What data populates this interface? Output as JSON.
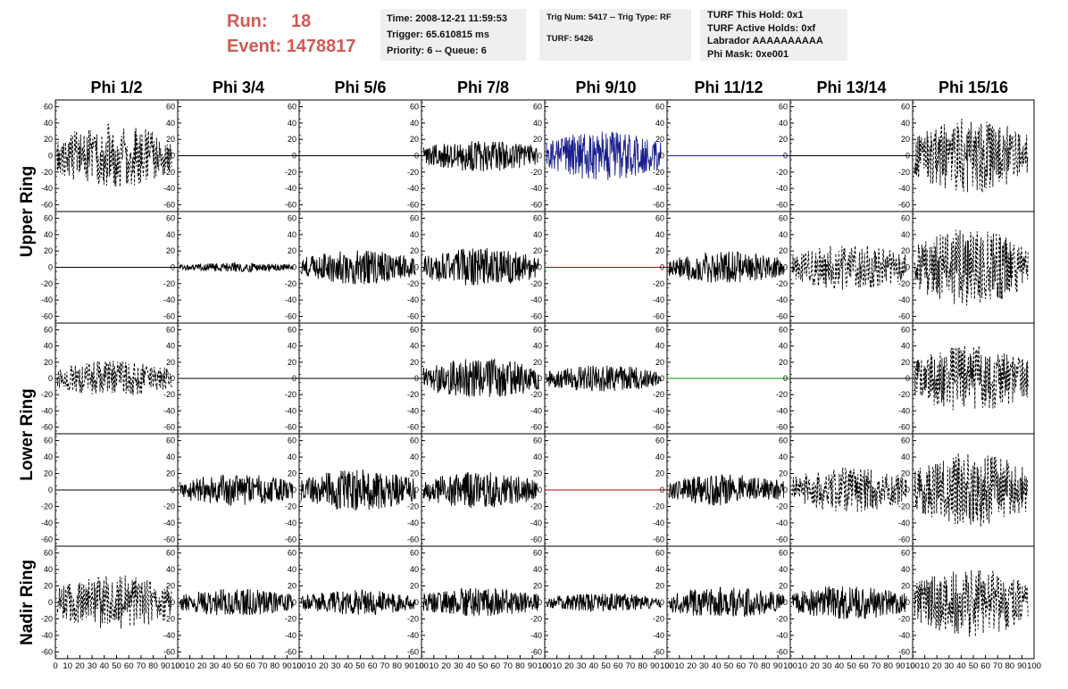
{
  "header": {
    "run_label": "Run:",
    "run_value": "18",
    "event_label": "Event:",
    "event_value": "1478817"
  },
  "info_box_1": {
    "line1": "Time: 2008-12-21 11:59:53",
    "line2": "Trigger: 65.610815 ms",
    "line3": "Priority: 6 -- Queue: 6"
  },
  "info_box_2": {
    "line1": "Trig Num: 5417 -- Trig Type: RF",
    "line2": "TURF: 5426"
  },
  "info_box_3": {
    "line1": "TURF This Hold: 0x1",
    "line2": "TURF Active Holds: 0xf",
    "line3": "Labrador AAAAAAAAAA",
    "line4": "Phi Mask: 0xe001"
  },
  "colors": {
    "header_red": "#d05a55",
    "info_bg": "#efefef",
    "trace_black": "#000000",
    "trace_blue": "#1a1f8c",
    "trace_red": "#b00000",
    "trace_green": "#009a00"
  },
  "chart_data": {
    "type": "line",
    "title": "",
    "columns": [
      "Phi 1/2",
      "Phi 3/4",
      "Phi 5/6",
      "Phi 7/8",
      "Phi 9/10",
      "Phi 11/12",
      "Phi 13/14",
      "Phi 15/16"
    ],
    "row_groups": [
      "Upper Ring",
      "Lower Ring",
      "Nadir Ring"
    ],
    "ylim": [
      -65,
      65
    ],
    "yticks": [
      "60",
      "40",
      "20",
      "0",
      "-20",
      "-40",
      "-60"
    ],
    "xlim": [
      0,
      100
    ],
    "xticks": [
      "0",
      "10",
      "20",
      "30",
      "40",
      "50",
      "60",
      "70",
      "80",
      "90",
      "100"
    ],
    "grid": false,
    "panels": [
      [
        {
          "style": "dashed",
          "amp": 28,
          "color": "black"
        },
        {
          "style": "flat",
          "amp": 0,
          "color": "black"
        },
        {
          "style": "flat",
          "amp": 0,
          "color": "black"
        },
        {
          "style": "solid",
          "amp": 14,
          "color": "black"
        },
        {
          "style": "solid",
          "amp": 22,
          "color": "blue"
        },
        {
          "style": "flat",
          "amp": 0,
          "color": "blue"
        },
        {
          "style": "flat",
          "amp": 0,
          "color": "black"
        },
        {
          "style": "dashed",
          "amp": 33,
          "color": "black"
        }
      ],
      [
        {
          "style": "flat",
          "amp": 0,
          "color": "black"
        },
        {
          "style": "solid",
          "amp": 4,
          "color": "black"
        },
        {
          "style": "solid",
          "amp": 15,
          "color": "black"
        },
        {
          "style": "solid",
          "amp": 17,
          "color": "black"
        },
        {
          "style": "flat",
          "amp": 0,
          "color": "red"
        },
        {
          "style": "solid",
          "amp": 14,
          "color": "black"
        },
        {
          "style": "dashed",
          "amp": 20,
          "color": "black"
        },
        {
          "style": "dashed",
          "amp": 34,
          "color": "black"
        }
      ],
      [
        {
          "style": "dashed",
          "amp": 16,
          "color": "black"
        },
        {
          "style": "flat",
          "amp": 0,
          "color": "black"
        },
        {
          "style": "flat",
          "amp": 0,
          "color": "black"
        },
        {
          "style": "solid",
          "amp": 18,
          "color": "black"
        },
        {
          "style": "solid",
          "amp": 12,
          "color": "black"
        },
        {
          "style": "flat",
          "amp": 0,
          "color": "green"
        },
        {
          "style": "flat",
          "amp": 0,
          "color": "black"
        },
        {
          "style": "dashed",
          "amp": 30,
          "color": "black"
        }
      ],
      [
        {
          "style": "flat",
          "amp": 0,
          "color": "black"
        },
        {
          "style": "solid",
          "amp": 14,
          "color": "black"
        },
        {
          "style": "solid",
          "amp": 18,
          "color": "black"
        },
        {
          "style": "solid",
          "amp": 16,
          "color": "black"
        },
        {
          "style": "flat",
          "amp": 0,
          "color": "red"
        },
        {
          "style": "solid",
          "amp": 14,
          "color": "black"
        },
        {
          "style": "dashed",
          "amp": 20,
          "color": "black"
        },
        {
          "style": "dashed",
          "amp": 33,
          "color": "black"
        }
      ],
      [
        {
          "style": "dashed",
          "amp": 24,
          "color": "black"
        },
        {
          "style": "solid",
          "amp": 12,
          "color": "black"
        },
        {
          "style": "solid",
          "amp": 11,
          "color": "black"
        },
        {
          "style": "solid",
          "amp": 13,
          "color": "black"
        },
        {
          "style": "solid",
          "amp": 8,
          "color": "black"
        },
        {
          "style": "solid",
          "amp": 14,
          "color": "black"
        },
        {
          "style": "solid",
          "amp": 15,
          "color": "black"
        },
        {
          "style": "dashed",
          "amp": 30,
          "color": "black"
        }
      ]
    ]
  }
}
